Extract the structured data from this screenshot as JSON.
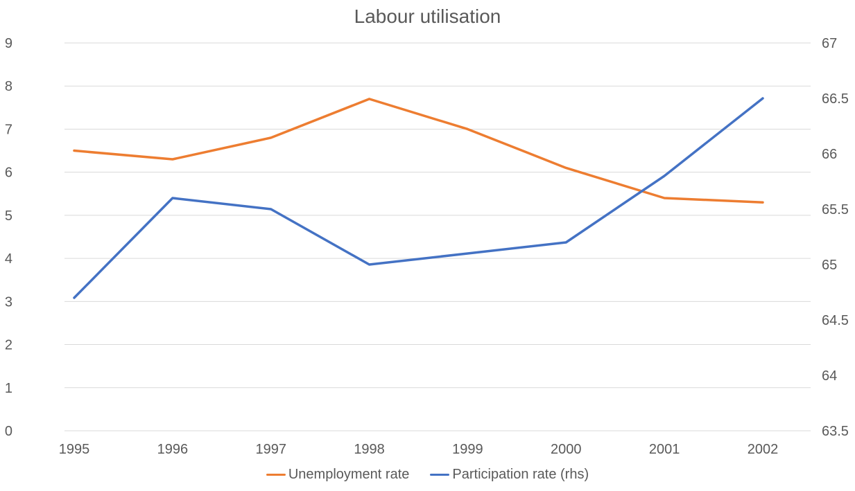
{
  "chart_data": {
    "type": "line",
    "title": "Labour utilisation",
    "categories": [
      "1995",
      "1996",
      "1997",
      "1998",
      "1999",
      "2000",
      "2001",
      "2002"
    ],
    "series": [
      {
        "name": "Unemployment rate",
        "axis": "left",
        "color": "#ED7D31",
        "values": [
          6.5,
          6.3,
          6.8,
          7.7,
          7.0,
          6.1,
          5.4,
          5.3
        ]
      },
      {
        "name": "Participation rate (rhs)",
        "axis": "right",
        "color": "#4472C4",
        "values": [
          64.7,
          65.6,
          65.5,
          65.0,
          65.1,
          65.2,
          65.8,
          66.5
        ]
      }
    ],
    "left_axis": {
      "min": 0,
      "max": 9,
      "ticks": [
        "0",
        "1",
        "2",
        "3",
        "4",
        "5",
        "6",
        "7",
        "8",
        "9"
      ]
    },
    "right_axis": {
      "min": 63.5,
      "max": 67,
      "ticks": [
        "63.5",
        "64",
        "64.5",
        "65",
        "65.5",
        "66",
        "66.5",
        "67"
      ]
    },
    "grid": true,
    "legend_position": "bottom",
    "colors": {
      "text": "#595959",
      "gridline": "#D9D9D9",
      "background": "#FFFFFF"
    }
  }
}
